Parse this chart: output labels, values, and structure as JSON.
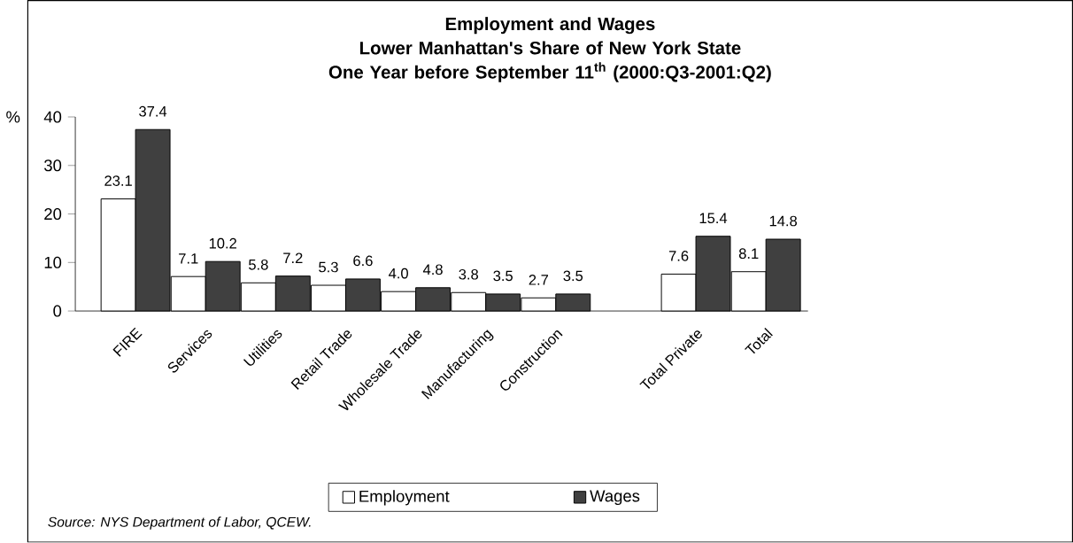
{
  "chart_data": {
    "type": "bar",
    "title": "Employment and Wages\nLower Manhattan's Share of New York State\nOne Year before September 11$^{th}$ (2000:Q3-2001:Q2)",
    "ylabel": "%",
    "categories": [
      "FIRE",
      "Services",
      "Utilities",
      "Retail Trade",
      "Wholesale Trade",
      "Manufacturing",
      "Construction",
      null,
      "Total Private",
      "Total"
    ],
    "series": [
      {
        "name": "Employment",
        "color": "#ffffff",
        "values": [
          23.1,
          7.1,
          5.8,
          5.3,
          4.0,
          3.8,
          2.7,
          null,
          7.6,
          8.1
        ],
        "value_labels": [
          "23.1",
          "7.1",
          "5.8",
          "5.3",
          "4.0",
          "3.8",
          "2.7",
          null,
          "7.6",
          "8.1"
        ]
      },
      {
        "name": "Wages",
        "color": "#404040",
        "values": [
          37.4,
          10.2,
          7.2,
          6.6,
          4.8,
          3.5,
          3.5,
          null,
          15.4,
          14.8
        ],
        "value_labels": [
          "37.4",
          "10.2",
          "7.2",
          "6.6",
          "4.8",
          "3.5",
          "3.5",
          null,
          "15.4",
          "14.8"
        ]
      }
    ],
    "ylim": [
      0,
      40
    ],
    "yticks": [
      0,
      10,
      20,
      30,
      40
    ],
    "grid": false,
    "legend": "bottom",
    "annotations": [
      "Source: NYS Department of Labor, QCEW."
    ]
  }
}
